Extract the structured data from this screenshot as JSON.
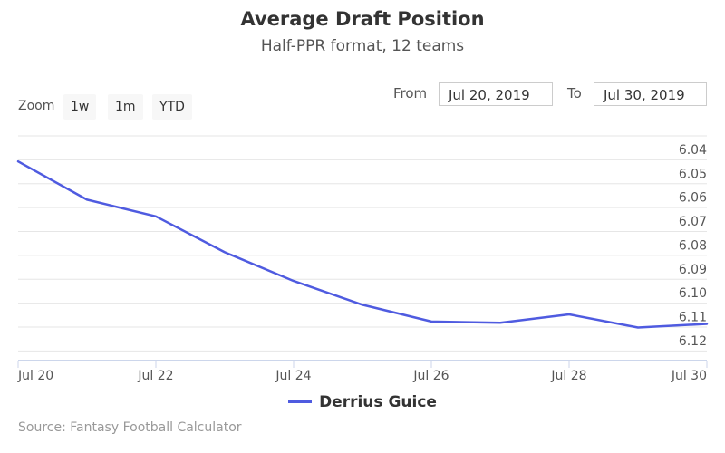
{
  "title": "Average Draft Position",
  "subtitle": "Half-PPR format, 12 teams",
  "zoom": {
    "label": "Zoom",
    "buttons": [
      "1w",
      "1m",
      "YTD"
    ]
  },
  "range": {
    "from_label": "From",
    "from_value": "Jul 20, 2019",
    "to_label": "To",
    "to_value": "Jul 30, 2019"
  },
  "credits": "Source: Fantasy Football Calculator",
  "colors": {
    "series": "#4f5be0",
    "grid": "#e6e6e6",
    "axis": "#ccd6eb"
  },
  "chart_data": {
    "type": "line",
    "title": "Average Draft Position",
    "subtitle": "Half-PPR format, 12 teams",
    "x": [
      "2019-07-20",
      "2019-07-21",
      "2019-07-22",
      "2019-07-23",
      "2019-07-24",
      "2019-07-25",
      "2019-07-26",
      "2019-07-27",
      "2019-07-28",
      "2019-07-29",
      "2019-07-30"
    ],
    "x_tick_labels": [
      "Jul 20",
      "Jul 22",
      "Jul 24",
      "Jul 26",
      "Jul 28",
      "Jul 30"
    ],
    "y_ticks": [
      "6.04",
      "6.05",
      "6.06",
      "6.07",
      "6.08",
      "6.09",
      "6.10",
      "6.11",
      "6.12"
    ],
    "ylim": [
      6.04,
      6.12
    ],
    "y_reversed": true,
    "y_axis_side": "right",
    "grid": true,
    "legend": "bottom",
    "series": [
      {
        "name": "Derrius Guice",
        "values": [
          6.045,
          6.061,
          6.068,
          6.083,
          6.095,
          6.105,
          6.112,
          6.1125,
          6.109,
          6.1145,
          6.113
        ]
      }
    ]
  }
}
